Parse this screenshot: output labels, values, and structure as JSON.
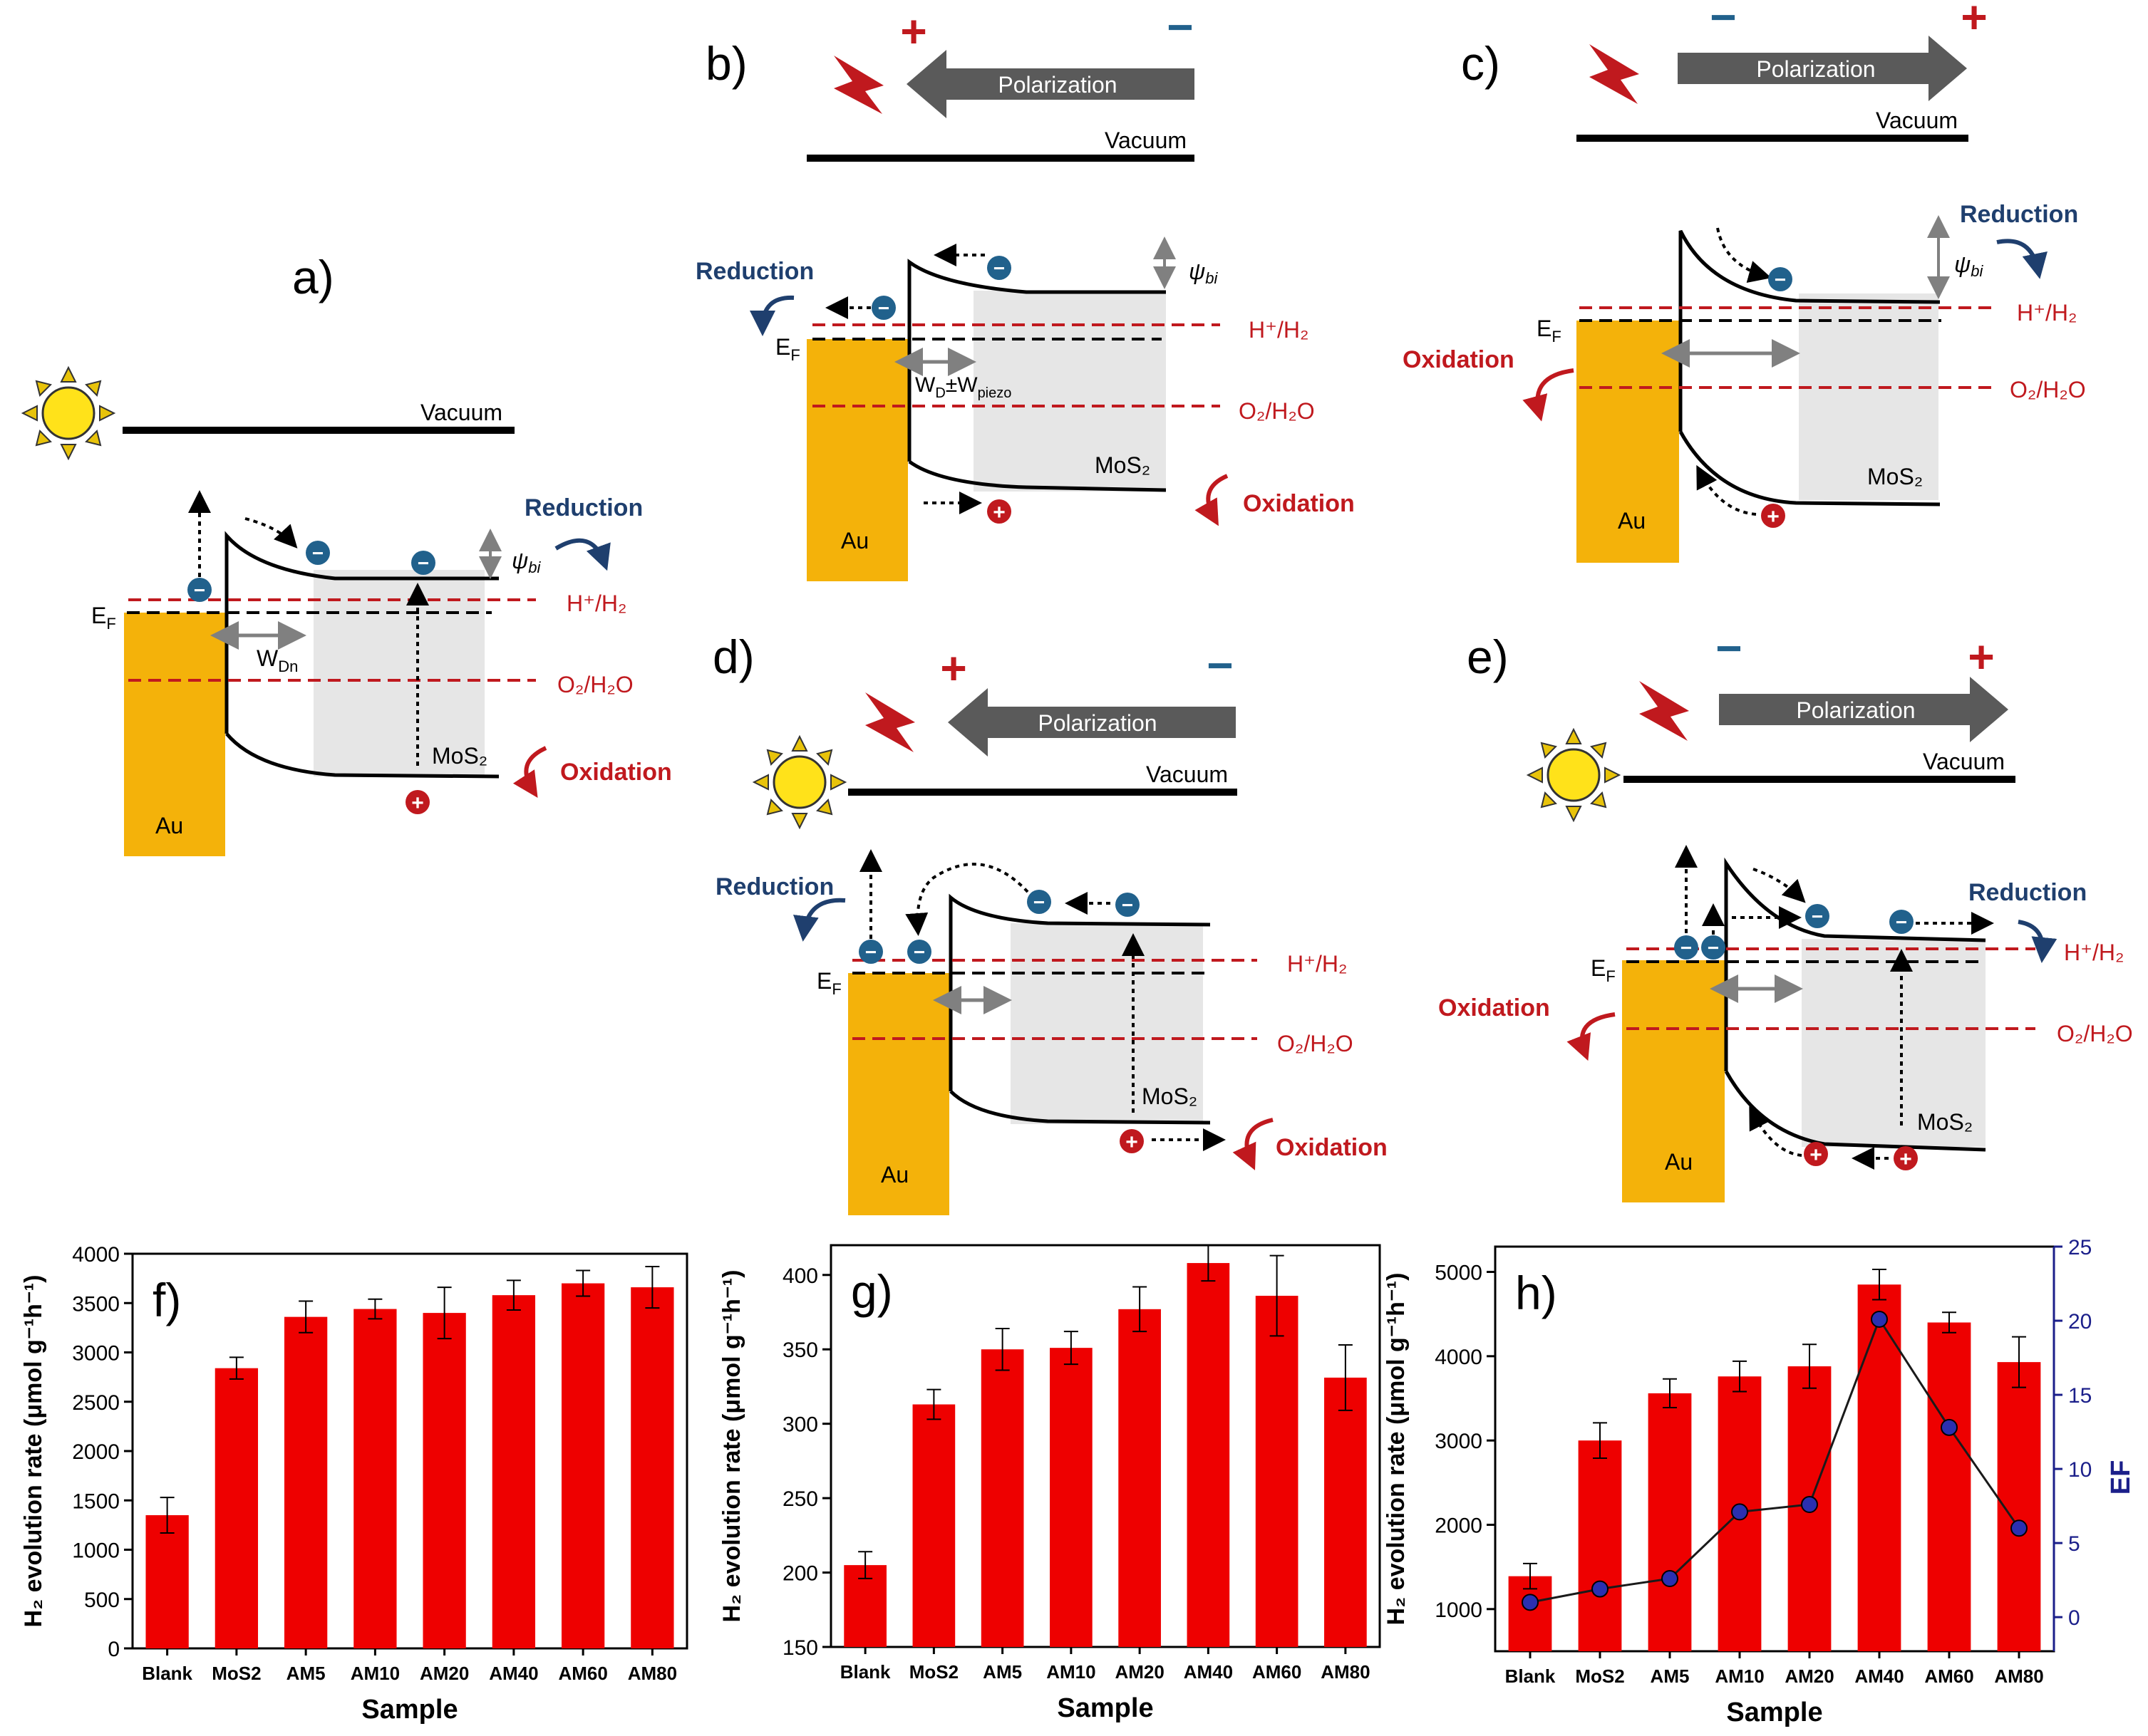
{
  "colors": {
    "au": "#f4b20a",
    "band": "#000000",
    "redox_line": "#c0191e",
    "depletion": "#e6e6e6",
    "arrow_gray": "#808080",
    "reduction_text": "#1f3f6e",
    "oxidation_text": "#c0191e",
    "electron": "#21618c",
    "hole": "#c0191e",
    "polarization_arrow": "#5a5a5a",
    "sun": "#ffe21a",
    "lightning": "#c0191e",
    "bar": "#ee0000",
    "ef_line": "#1b1f8a"
  },
  "panels": {
    "a": {
      "label": "a)",
      "vacuum": "Vacuum",
      "reduction": "Reduction",
      "oxidation": "Oxidation",
      "psi": "ψ",
      "psi_sub": "bi",
      "h_couple": "H⁺/H₂",
      "o_couple": "O₂/H₂O",
      "ef": "E",
      "ef_sub": "F",
      "width": "W",
      "width_sub": "Dn",
      "mos2": "MoS₂",
      "au": "Au",
      "minus": "−",
      "plus": "+"
    },
    "b": {
      "label": "b)",
      "vacuum": "Vacuum",
      "polarization": "Polarization",
      "reduction": "Reduction",
      "oxidation": "Oxidation",
      "psi": "ψ",
      "psi_sub": "bi",
      "h_couple": "H⁺/H₂",
      "o_couple": "O₂/H₂O",
      "ef": "E",
      "ef_sub": "F",
      "width": "W",
      "width_sub": "D",
      "width_mid": "±W",
      "width_sub2": "piezo",
      "mos2": "MoS₂",
      "au": "Au",
      "minus": "−",
      "plus": "+"
    },
    "c": {
      "label": "c)",
      "vacuum": "Vacuum",
      "polarization": "Polarization",
      "reduction": "Reduction",
      "oxidation": "Oxidation",
      "psi": "ψ",
      "psi_sub": "bi",
      "h_couple": "H⁺/H₂",
      "o_couple": "O₂/H₂O",
      "ef": "E",
      "ef_sub": "F",
      "mos2": "MoS₂",
      "au": "Au",
      "minus": "−",
      "plus": "+"
    },
    "d": {
      "label": "d)",
      "vacuum": "Vacuum",
      "polarization": "Polarization",
      "reduction": "Reduction",
      "oxidation": "Oxidation",
      "h_couple": "H⁺/H₂",
      "o_couple": "O₂/H₂O",
      "ef": "E",
      "ef_sub": "F",
      "mos2": "MoS₂",
      "au": "Au",
      "minus": "−",
      "plus": "+"
    },
    "e": {
      "label": "e)",
      "vacuum": "Vacuum",
      "polarization": "Polarization",
      "reduction": "Reduction",
      "oxidation": "Oxidation",
      "h_couple": "H⁺/H₂",
      "o_couple": "O₂/H₂O",
      "ef": "E",
      "ef_sub": "F",
      "mos2": "MoS₂",
      "au": "Au",
      "minus": "−",
      "plus": "+"
    }
  },
  "chart_data": [
    {
      "type": "bar",
      "panel": "f)",
      "categories": [
        "Blank",
        "MoS2",
        "AM5",
        "AM10",
        "AM20",
        "AM40",
        "AM60",
        "AM80"
      ],
      "values": [
        1350,
        2840,
        3360,
        3440,
        3400,
        3580,
        3700,
        3660
      ],
      "errors": [
        180,
        110,
        160,
        100,
        260,
        150,
        130,
        210
      ],
      "xlabel": "Sample",
      "ylabel": "H₂ evolution rate (μmol g⁻¹h⁻¹)",
      "ylim": [
        0,
        4000
      ],
      "yticks": [
        0,
        500,
        1000,
        1500,
        2000,
        2500,
        3000,
        3500,
        4000
      ]
    },
    {
      "type": "bar",
      "panel": "g)",
      "categories": [
        "Blank",
        "MoS2",
        "AM5",
        "AM10",
        "AM20",
        "AM40",
        "AM60",
        "AM80"
      ],
      "values": [
        205,
        313,
        350,
        351,
        377,
        408,
        386,
        331
      ],
      "errors": [
        9,
        10,
        14,
        11,
        15,
        12,
        27,
        22
      ],
      "xlabel": "Sample",
      "ylabel": "H₂ evolution rate (μmol g⁻¹h⁻¹)",
      "ylim": [
        150,
        420
      ],
      "yticks": [
        150,
        200,
        250,
        300,
        350,
        400
      ]
    },
    {
      "type": "bar",
      "panel": "h)",
      "categories": [
        "Blank",
        "MoS2",
        "AM5",
        "AM10",
        "AM20",
        "AM40",
        "AM60",
        "AM80"
      ],
      "values": [
        1390,
        3000,
        3560,
        3760,
        3880,
        4850,
        4400,
        3930
      ],
      "errors": [
        150,
        210,
        170,
        180,
        260,
        180,
        120,
        300
      ],
      "ef_values": [
        1.0,
        1.9,
        2.6,
        7.1,
        7.6,
        20.1,
        12.8,
        6.0
      ],
      "xlabel": "Sample",
      "ylabel": "H₂ evolution rate (μmol g⁻¹h⁻¹)",
      "ylabel_right": "EF",
      "ylim": [
        500,
        5300
      ],
      "yticks": [
        1000,
        2000,
        3000,
        4000,
        5000
      ],
      "ylim_right": [
        -2.3,
        25
      ],
      "yticks_right": [
        0,
        5,
        10,
        15,
        20,
        25
      ]
    }
  ]
}
